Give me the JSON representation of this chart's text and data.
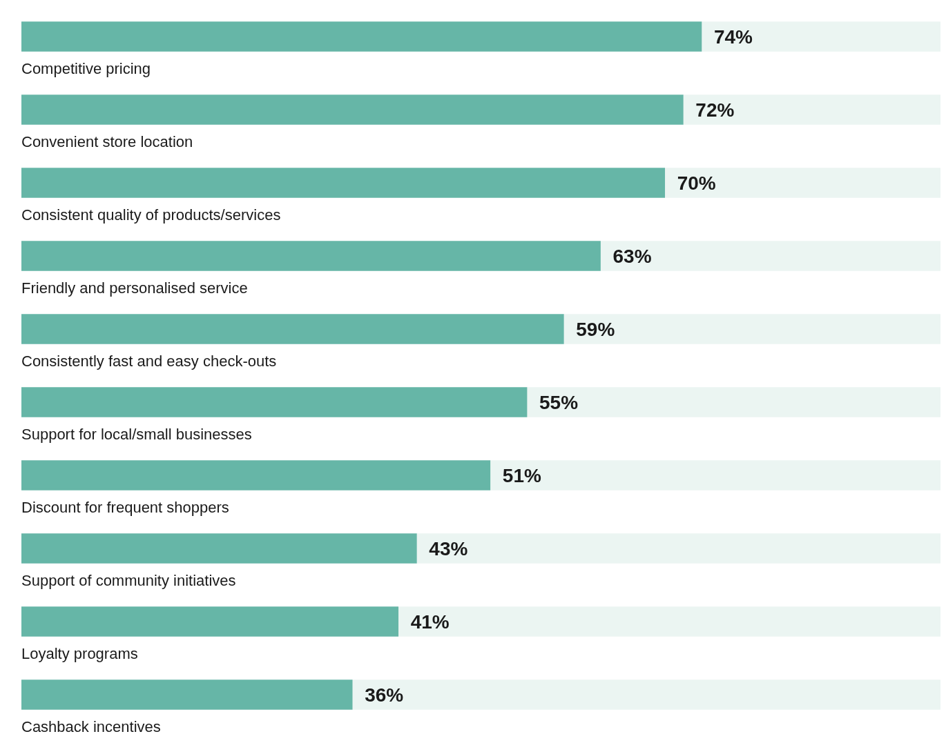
{
  "chart_data": {
    "type": "bar",
    "orientation": "horizontal",
    "stacked": true,
    "categories": [
      "Competitive pricing",
      "Convenient store location",
      "Consistent quality of products/services",
      "Friendly and personalised service",
      "Consistently fast and easy check-outs",
      "Support for local/small businesses",
      "Discount for frequent shoppers",
      "Support of community initiatives",
      "Loyalty programs",
      "Cashback incentives"
    ],
    "series": [
      {
        "color": "#66b6a7",
        "values": [
          74,
          72,
          70,
          63,
          59,
          55,
          51,
          43,
          41,
          36
        ],
        "value_labels": [
          "74%",
          "72%",
          "70%",
          "63%",
          "59%",
          "55%",
          "51%",
          "43%",
          "41%",
          "36%"
        ]
      },
      {
        "color": "#ebf5f2",
        "values": [
          26,
          28,
          30,
          37,
          41,
          45,
          49,
          57,
          59,
          64
        ]
      }
    ],
    "xlim": [
      0,
      100
    ],
    "legend": false
  }
}
